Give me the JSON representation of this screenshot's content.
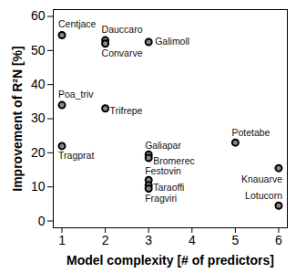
{
  "chart_data": {
    "type": "scatter",
    "x_label": "Model complexity [# of predictors]",
    "y_label": "Improvement of R²N [%]",
    "labels": [
      "Centjace",
      "Dauccaro",
      "Convarve",
      "Galimoll",
      "Poa_triv",
      "Trifrepe",
      "Tragprat",
      "Galiapar",
      "Bromerec",
      "Festovin",
      "Taraoffi",
      "Fragviri",
      "Potetabe",
      "Knauarve",
      "Lotucorn"
    ],
    "x": [
      1,
      2,
      2,
      3,
      1,
      2,
      1,
      3,
      3,
      3,
      3,
      3,
      5,
      6,
      6
    ],
    "values": [
      54.5,
      53,
      52,
      52.5,
      34,
      33,
      22,
      19.5,
      18.5,
      12,
      10.5,
      9.5,
      23,
      15.5,
      4.5
    ],
    "color": "#888888",
    "marker": "circle",
    "xlim": [
      0.8,
      6.2
    ],
    "xticks": [
      1,
      2,
      3,
      4,
      5,
      6
    ],
    "ylim": [
      -2,
      62
    ],
    "yticks": [
      0,
      10,
      20,
      30,
      40,
      50,
      60
    ],
    "grid": false
  }
}
